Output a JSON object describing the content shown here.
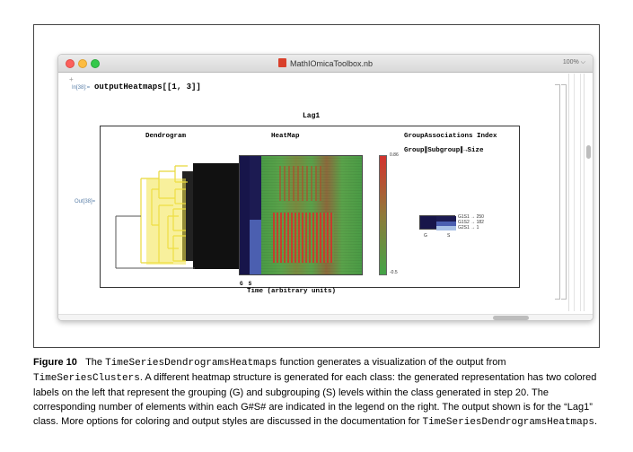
{
  "window": {
    "title": "MathIOmicaToolbox.nb",
    "zoom": "100%"
  },
  "notebook": {
    "in_label": "In[38]:=",
    "input_code": "outputHeatmaps[[1, 3]]",
    "out_label": "Out[38]="
  },
  "output": {
    "title": "Lag1",
    "headers": {
      "dendrogram": "Dendrogram",
      "heatmap": "HeatMap",
      "group_associations": "GroupAssociations Index",
      "group_subgroup_size": "Group∥Subgroup∥→Size"
    },
    "colorbar": {
      "max": "0.86",
      "min": "-0.5"
    },
    "gs_labels": [
      "G",
      "S"
    ],
    "time_label": "Time (arbitrary units)",
    "legend": {
      "entries": [
        "G1S1 → 250",
        "G1S2 → 182",
        "G2S1 → 1"
      ],
      "g_label": "G",
      "s_label": "S"
    },
    "colors": {
      "group_dark": "#17154a",
      "subgroup_mid": "#4b5fb0",
      "subgroup_light": "#a9c1e6",
      "dendrogram_yellow": "#f2e34a",
      "heat_red": "#d3322e",
      "heat_green": "#43a447"
    }
  },
  "caption": {
    "label": "Figure 10",
    "p1": "The ",
    "code1": "TimeSeriesDendrogramsHeatmaps",
    "p2": " function generates a visualization of the output from ",
    "code2": "TimeSeriesClusters",
    "p3": ". A different heatmap structure is generated for each class: the generated representation has two colored labels on the left that represent the grouping (G) and subgrouping (S) levels within the class generated in step 20. The corresponding number of elements within each G#S# are indicated in the legend on the right. The output shown is for the “Lag1” class. More options for coloring and output styles are discussed in the documentation for ",
    "code3": "TimeSeriesDendrogramsHeatmaps",
    "p4": "."
  }
}
